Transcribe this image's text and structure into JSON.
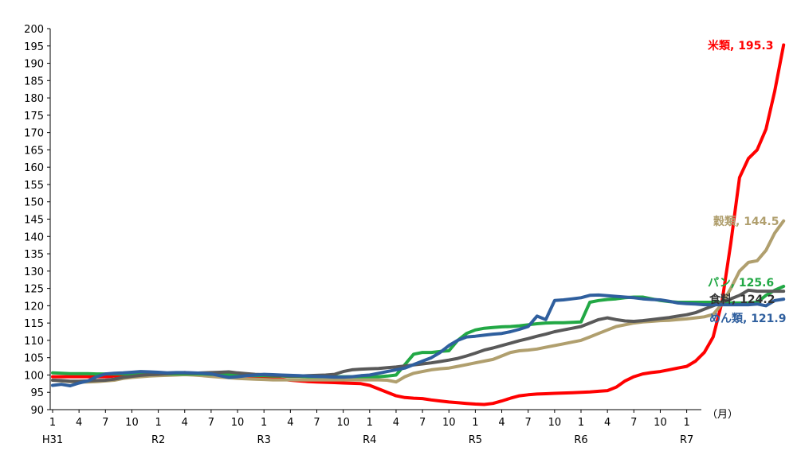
{
  "chart_data": {
    "type": "line",
    "title": "",
    "xlabel": "",
    "ylabel": "",
    "x_unit_label": "（月）",
    "ylim": [
      90,
      200
    ],
    "yticks": [
      90,
      95,
      100,
      105,
      110,
      115,
      120,
      125,
      130,
      135,
      140,
      145,
      150,
      155,
      160,
      165,
      170,
      175,
      180,
      185,
      190,
      195,
      200
    ],
    "x_month_ticks": [
      "1",
      "4",
      "7",
      "10",
      "1",
      "4",
      "7",
      "10",
      "1",
      "4",
      "7",
      "10",
      "1",
      "4",
      "7",
      "10",
      "1",
      "4",
      "7",
      "10",
      "1",
      "4",
      "7",
      "10",
      "1"
    ],
    "era_labels": [
      {
        "label": "H31",
        "tick_index": 0
      },
      {
        "label": "R2",
        "tick_index": 4
      },
      {
        "label": "R3",
        "tick_index": 8
      },
      {
        "label": "R4",
        "tick_index": 12
      },
      {
        "label": "R5",
        "tick_index": 16
      },
      {
        "label": "R6",
        "tick_index": 20
      },
      {
        "label": "R7",
        "tick_index": 24
      }
    ],
    "grid": false,
    "series": [
      {
        "name": "米類",
        "end_label": "米類, 195.3",
        "color": "#ff0000",
        "values": [
          99.5,
          99.5,
          99.5,
          99.5,
          99.5,
          99.5,
          99.5,
          99.7,
          100,
          100,
          100.3,
          100.5,
          100.5,
          100.5,
          100.5,
          100.7,
          100.5,
          100.3,
          100.3,
          100.3,
          100.1,
          99.9,
          99.7,
          99.5,
          99.3,
          99.1,
          98.8,
          98.5,
          98.3,
          98.1,
          98,
          97.9,
          97.8,
          97.7,
          97.6,
          97.5,
          97,
          96,
          95,
          94,
          93.5,
          93.3,
          93.2,
          92.8,
          92.5,
          92.2,
          92,
          91.8,
          91.6,
          91.5,
          91.8,
          92.5,
          93.3,
          94,
          94.3,
          94.5,
          94.6,
          94.7,
          94.8,
          94.9,
          95,
          95.1,
          95.3,
          95.5,
          96.5,
          98.3,
          99.5,
          100.3,
          100.7,
          101,
          101.5,
          102,
          102.5,
          104,
          106.5,
          111,
          121,
          138,
          157,
          162.5,
          165,
          171,
          182,
          195.3
        ]
      },
      {
        "name": "穀類",
        "end_label": "穀類, 144.5",
        "color": "#b09f6e",
        "values": [
          98.5,
          98.3,
          98.1,
          98,
          98,
          98.1,
          98.3,
          98.5,
          99,
          99.3,
          99.5,
          99.7,
          99.8,
          99.9,
          100,
          100.1,
          100,
          99.8,
          99.6,
          99.4,
          99.2,
          99,
          98.9,
          98.8,
          98.7,
          98.6,
          98.6,
          98.6,
          98.6,
          98.6,
          98.6,
          98.6,
          98.6,
          98.6,
          98.6,
          98.6,
          98.6,
          98.6,
          98.5,
          98,
          99.5,
          100.5,
          101,
          101.5,
          101.8,
          102,
          102.5,
          103,
          103.5,
          104,
          104.5,
          105.5,
          106.5,
          107,
          107.2,
          107.5,
          108,
          108.5,
          109,
          109.5,
          110,
          111,
          112,
          113,
          114,
          114.5,
          115,
          115.3,
          115.5,
          115.7,
          115.8,
          116,
          116.2,
          116.5,
          116.8,
          117.5,
          120.5,
          125,
          130,
          132.5,
          133,
          136,
          141,
          144.5
        ]
      },
      {
        "name": "パン",
        "end_label": "パン, 125.6",
        "color": "#22a845",
        "values": [
          100.6,
          100.5,
          100.4,
          100.4,
          100.4,
          100.3,
          100.3,
          100.3,
          100.3,
          100.3,
          100.3,
          100.3,
          100.3,
          100.3,
          100.3,
          100.3,
          100.3,
          100.3,
          100.2,
          100.2,
          100.1,
          100,
          99.9,
          99.8,
          99.8,
          99.7,
          99.7,
          99.6,
          99.6,
          99.5,
          99.5,
          99.5,
          99.5,
          99.5,
          99.5,
          99.5,
          99.5,
          99.5,
          99.7,
          100,
          103,
          106,
          106.5,
          106.5,
          106.8,
          107,
          110,
          112,
          113,
          113.5,
          113.7,
          113.9,
          114,
          114.2,
          114.5,
          114.8,
          115,
          115.1,
          115.1,
          115.2,
          115.3,
          121,
          121.5,
          121.8,
          122,
          122.3,
          122.5,
          122.5,
          122,
          121.5,
          121.2,
          121,
          121,
          121,
          121,
          121,
          121,
          120.8,
          120.8,
          120.8,
          121,
          123,
          124.5,
          125.6
        ]
      },
      {
        "name": "食料",
        "end_label": "食料, 124.2",
        "color": "#595959",
        "values": [
          98.5,
          98.4,
          98.2,
          98.2,
          98.3,
          98.4,
          98.5,
          98.8,
          99.3,
          99.6,
          99.9,
          100.1,
          100.2,
          100.4,
          100.6,
          100.6,
          100.5,
          100.6,
          100.7,
          100.8,
          100.9,
          100.6,
          100.4,
          100.2,
          100.1,
          99.9,
          99.8,
          99.7,
          99.7,
          99.8,
          99.9,
          100,
          100.2,
          101,
          101.5,
          101.7,
          101.8,
          101.9,
          102.1,
          102.3,
          102.6,
          102.9,
          103.2,
          103.5,
          103.9,
          104.3,
          104.8,
          105.5,
          106.3,
          107.2,
          107.8,
          108.5,
          109.2,
          109.9,
          110.5,
          111.2,
          111.8,
          112.5,
          113,
          113.5,
          114,
          115,
          116,
          116.5,
          116,
          115.6,
          115.5,
          115.7,
          116,
          116.3,
          116.6,
          117,
          117.4,
          118,
          119,
          120,
          121,
          122,
          123,
          124.5,
          124.2,
          124.2,
          124.2,
          124.2
        ]
      },
      {
        "name": "めん類",
        "end_label": "めん類, 121.9",
        "color": "#2f5f9e",
        "values": [
          97,
          97.3,
          96.9,
          97.7,
          98.3,
          99.5,
          100.3,
          100.5,
          100.6,
          100.8,
          101,
          100.9,
          100.8,
          100.6,
          100.7,
          100.7,
          100.6,
          100.5,
          100.3,
          99.8,
          99.3,
          99.5,
          99.8,
          100,
          100.2,
          100.1,
          100,
          99.9,
          99.8,
          99.7,
          99.6,
          99.5,
          99.4,
          99.4,
          99.5,
          99.8,
          100,
          100.5,
          101,
          101.5,
          102,
          103,
          104,
          105,
          106.5,
          108.5,
          110,
          111,
          111.2,
          111.5,
          111.8,
          112,
          112.5,
          113.2,
          114,
          117,
          116,
          121.5,
          121.7,
          122,
          122.3,
          123,
          123.1,
          122.9,
          122.7,
          122.5,
          122.3,
          122,
          121.8,
          121.7,
          121.3,
          120.8,
          120.6,
          120.5,
          120.3,
          120.3,
          120.3,
          120.3,
          120.3,
          120.3,
          120.5,
          120,
          121.5,
          121.9
        ]
      }
    ]
  }
}
